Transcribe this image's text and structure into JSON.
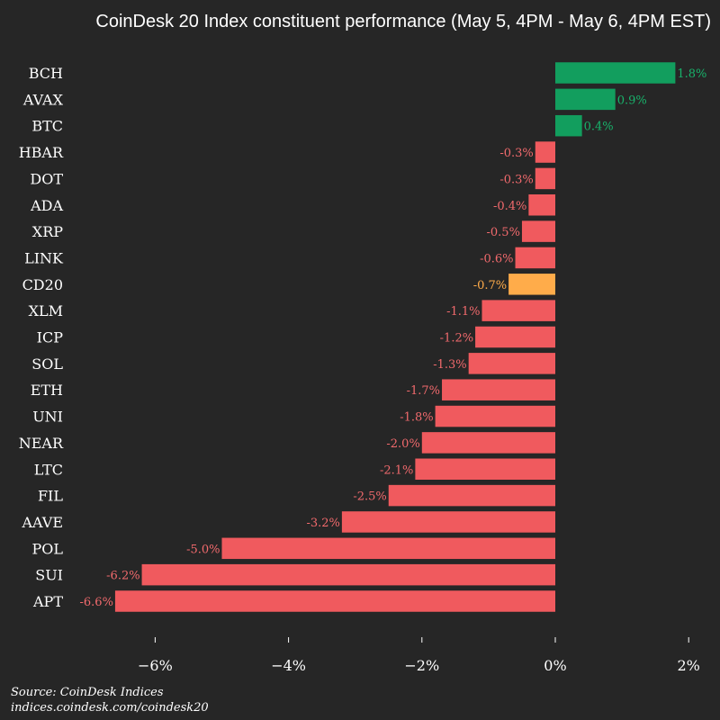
{
  "chart_data": {
    "type": "bar",
    "orientation": "horizontal",
    "title": "CoinDesk 20 Index constituent performance (May 5, 4PM - May 6, 4PM EST)",
    "categories": [
      "BCH",
      "AVAX",
      "BTC",
      "HBAR",
      "DOT",
      "ADA",
      "XRP",
      "LINK",
      "CD20",
      "XLM",
      "ICP",
      "SOL",
      "ETH",
      "UNI",
      "NEAR",
      "LTC",
      "FIL",
      "AAVE",
      "POL",
      "SUI",
      "APT"
    ],
    "values": [
      1.8,
      0.9,
      0.4,
      -0.3,
      -0.3,
      -0.4,
      -0.5,
      -0.6,
      -0.7,
      -1.1,
      -1.2,
      -1.3,
      -1.7,
      -1.8,
      -2.0,
      -2.1,
      -2.5,
      -3.2,
      -5.0,
      -6.2,
      -6.6
    ],
    "value_labels": [
      "1.8%",
      "0.9%",
      "0.4%",
      "-0.3%",
      "-0.3%",
      "-0.4%",
      "-0.5%",
      "-0.6%",
      "-0.7%",
      "-1.1%",
      "-1.2%",
      "-1.3%",
      "-1.7%",
      "-1.8%",
      "-2.0%",
      "-2.1%",
      "-2.5%",
      "-3.2%",
      "-5.0%",
      "-6.2%",
      "-6.6%"
    ],
    "highlight_category": "CD20",
    "xlim": [
      -7.3,
      2.1
    ],
    "x_ticks": [
      -6,
      -4,
      -2,
      0,
      2
    ],
    "x_tick_labels": [
      "−6%",
      "−4%",
      "−2%",
      "0%",
      "2%"
    ],
    "grid": false,
    "xlabel": "",
    "ylabel": ""
  },
  "colors": {
    "background": "#262626",
    "positive": "#129e5e",
    "negative": "#f05a5e",
    "highlight": "#ffac4a",
    "positive_label": "#18b36b",
    "negative_label": "#f26a6d",
    "highlight_label": "#ffac4a",
    "text": "#ffffff"
  },
  "source": {
    "line1": "Source: CoinDesk Indices",
    "line2": "indices.coindesk.com/coindesk20"
  }
}
